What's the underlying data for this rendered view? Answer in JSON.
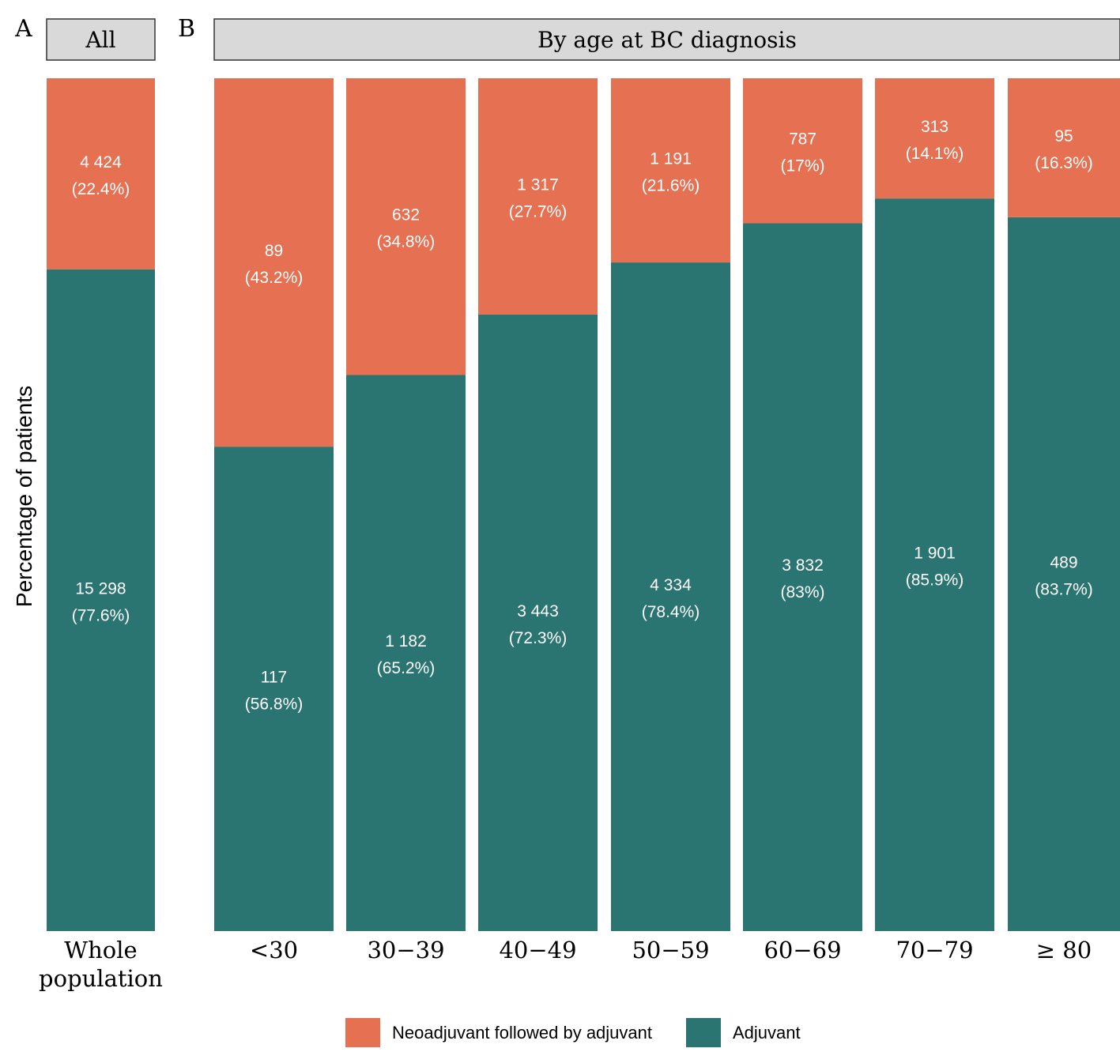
{
  "panels": {
    "a_letter": "A",
    "b_letter": "B",
    "a_strip": "All",
    "b_strip": "By age at BC diagnosis"
  },
  "y_axis_label": "Percentage of patients",
  "legend": [
    {
      "label": "Neoadjuvant followed by adjuvant",
      "color": "#e67052"
    },
    {
      "label": "Adjuvant",
      "color": "#2a7472"
    }
  ],
  "colors": {
    "neoadjuvant": "#e67052",
    "adjuvant": "#2a7472",
    "strip_fill": "#d9d9d9"
  },
  "chart_data": {
    "type": "bar",
    "stacked": true,
    "percent_stacked": true,
    "ylim": [
      0,
      100
    ],
    "grid": false,
    "legend_position": "bottom",
    "series_order_bottom_to_top": [
      "Adjuvant",
      "Neoadjuvant followed by adjuvant"
    ],
    "panels": [
      {
        "letter": "A",
        "strip": "All",
        "categories": [
          [
            "Whole",
            "population"
          ]
        ],
        "series": [
          {
            "name": "Neoadjuvant followed by adjuvant",
            "counts": [
              "4 424"
            ],
            "percent": [
              22.4
            ],
            "labels": [
              "(22.4%)"
            ]
          },
          {
            "name": "Adjuvant",
            "counts": [
              "15 298"
            ],
            "percent": [
              77.6
            ],
            "labels": [
              "(77.6%)"
            ]
          }
        ]
      },
      {
        "letter": "B",
        "strip": "By age at BC diagnosis",
        "categories": [
          [
            "<30"
          ],
          [
            "30−39"
          ],
          [
            "40−49"
          ],
          [
            "50−59"
          ],
          [
            "60−69"
          ],
          [
            "70−79"
          ],
          [
            "≥ 80"
          ]
        ],
        "series": [
          {
            "name": "Neoadjuvant followed by adjuvant",
            "counts": [
              "89",
              "632",
              "1 317",
              "1 191",
              "787",
              "313",
              "95"
            ],
            "percent": [
              43.2,
              34.8,
              27.7,
              21.6,
              17,
              14.1,
              16.3
            ],
            "labels": [
              "(43.2%)",
              "(34.8%)",
              "(27.7%)",
              "(21.6%)",
              "(17%)",
              "(14.1%)",
              "(16.3%)"
            ]
          },
          {
            "name": "Adjuvant",
            "counts": [
              "117",
              "1 182",
              "3 443",
              "4 334",
              "3 832",
              "1 901",
              "489"
            ],
            "percent": [
              56.8,
              65.2,
              72.3,
              78.4,
              83,
              85.9,
              83.7
            ],
            "labels": [
              "(56.8%)",
              "(65.2%)",
              "(72.3%)",
              "(78.4%)",
              "(83%)",
              "(85.9%)",
              "(83.7%)"
            ]
          }
        ]
      }
    ]
  }
}
